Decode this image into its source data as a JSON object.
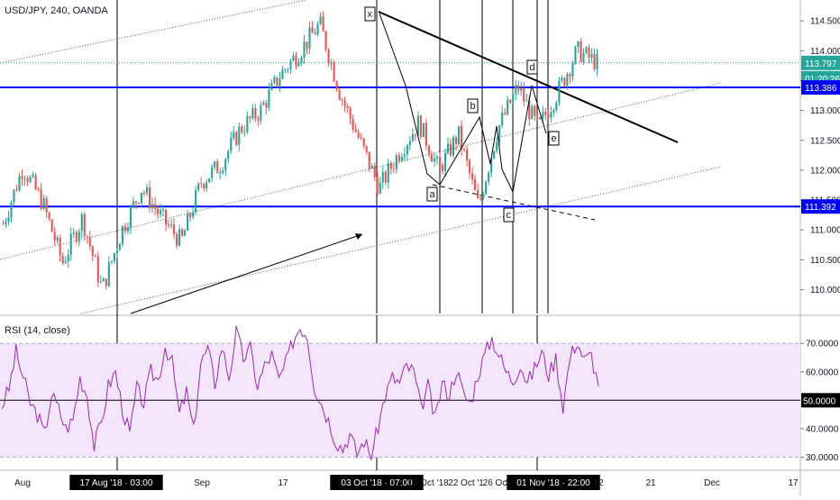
{
  "header": {
    "symbol_label": "USD/JPY, 240, OANDA"
  },
  "rsi_header": {
    "label": "RSI (14, close)"
  },
  "colors": {
    "up_candle": "#26a69a",
    "down_candle": "#ef5350",
    "level_line": "#0000ff",
    "rsi_line": "#9c27b0",
    "rsi_band": "#f3e6fb",
    "last_price_tag": "#26a69a",
    "level_tag": "#0000ff"
  },
  "chart_data": [
    {
      "type": "candlestick",
      "title": "USD/JPY, 240, OANDA",
      "y_ticks": [
        "110.000",
        "110.500",
        "111.000",
        "111.500",
        "112.000",
        "112.500",
        "113.000",
        "113.500",
        "114.000",
        "114.500"
      ],
      "ylim": [
        109.6,
        114.85
      ],
      "x_ticks": [
        "Aug",
        "17 Aug '18 · 03:00",
        "Sep",
        "17",
        "03 Oct '18 · 07:00",
        "15 Oct '18",
        "22 Oct '1",
        "26 Oc",
        "31",
        "01 Nov '18 · 22:00",
        "12",
        "21",
        "Dec",
        "17"
      ],
      "highlighted_x_ticks": [
        "17 Aug '18 · 03:00",
        "03 Oct '18 · 07:00",
        "01 Nov '18 · 22:00"
      ],
      "price_tags": [
        {
          "label": "113.797",
          "value": 113.797,
          "kind": "last-price"
        },
        {
          "label": "01:20:26",
          "kind": "countdown"
        },
        {
          "label": "113.386",
          "value": 113.386,
          "kind": "level"
        },
        {
          "label": "111.392",
          "value": 111.392,
          "kind": "level"
        }
      ],
      "horizontal_levels": [
        113.386,
        111.392
      ],
      "wave_labels": [
        "x",
        "a",
        "b",
        "c",
        "d",
        "e"
      ],
      "series": [
        {
          "kind": "ohlc-approx",
          "points": [
            [
              "Aug",
              111.1
            ],
            [
              "Aug+3",
              112.05
            ],
            [
              "Aug+7",
              111.45
            ],
            [
              "Aug+11",
              110.45
            ],
            [
              "17 Aug",
              111.2
            ],
            [
              "Aug 21",
              110.0
            ],
            [
              "Aug 25",
              111.0
            ],
            [
              "Sep",
              111.7
            ],
            [
              "Sep 5",
              111.2
            ],
            [
              "Sep 9",
              110.8
            ],
            [
              "Sep 13",
              111.8
            ],
            [
              "17",
              112.1
            ],
            [
              "Sep 21",
              112.7
            ],
            [
              "Sep 25",
              113.0
            ],
            [
              "Sep 29",
              113.6
            ],
            [
              "Oct 1",
              114.0
            ],
            [
              "03 Oct",
              114.45
            ],
            [
              "Oct 7",
              113.3
            ],
            [
              "Oct 10",
              112.5
            ],
            [
              "15 Oct",
              111.7
            ],
            [
              "Oct 18",
              112.3
            ],
            [
              "22 Oct",
              112.8
            ],
            [
              "Oct 24",
              112.0
            ],
            [
              "26 Oc",
              112.6
            ],
            [
              "Oct 29",
              111.4
            ],
            [
              "31",
              112.7
            ],
            [
              "01 Nov",
              113.4
            ],
            [
              "Nov 4",
              112.7
            ],
            [
              "Nov 6",
              113.3
            ],
            [
              "Nov 8",
              114.0
            ],
            [
              "Nov 10",
              113.8
            ]
          ]
        }
      ]
    },
    {
      "type": "line",
      "title": "RSI (14, close)",
      "y_ticks": [
        "30.0000",
        "40.0000",
        "50.0000",
        "60.0000",
        "70.0000"
      ],
      "ylim": [
        26,
        78
      ],
      "band": [
        30,
        70
      ],
      "midline": 50,
      "series": [
        {
          "name": "RSI",
          "values": [
            48,
            54,
            67,
            58,
            49,
            45,
            38,
            52,
            47,
            40,
            43,
            58,
            52,
            34,
            42,
            55,
            60,
            47,
            38,
            54,
            49,
            60,
            57,
            69,
            63,
            45,
            53,
            39,
            63,
            68,
            56,
            69,
            58,
            74,
            65,
            68,
            55,
            62,
            66,
            57,
            63,
            71,
            76,
            73,
            55,
            49,
            43,
            36,
            33,
            38,
            31,
            36,
            30,
            41,
            52,
            58,
            56,
            62,
            60,
            47,
            55,
            43,
            56,
            52,
            61,
            52,
            49,
            59,
            66,
            72,
            66,
            60,
            57,
            63,
            56,
            61,
            67,
            59,
            65,
            48,
            65,
            71,
            64,
            66,
            55
          ]
        }
      ]
    }
  ]
}
